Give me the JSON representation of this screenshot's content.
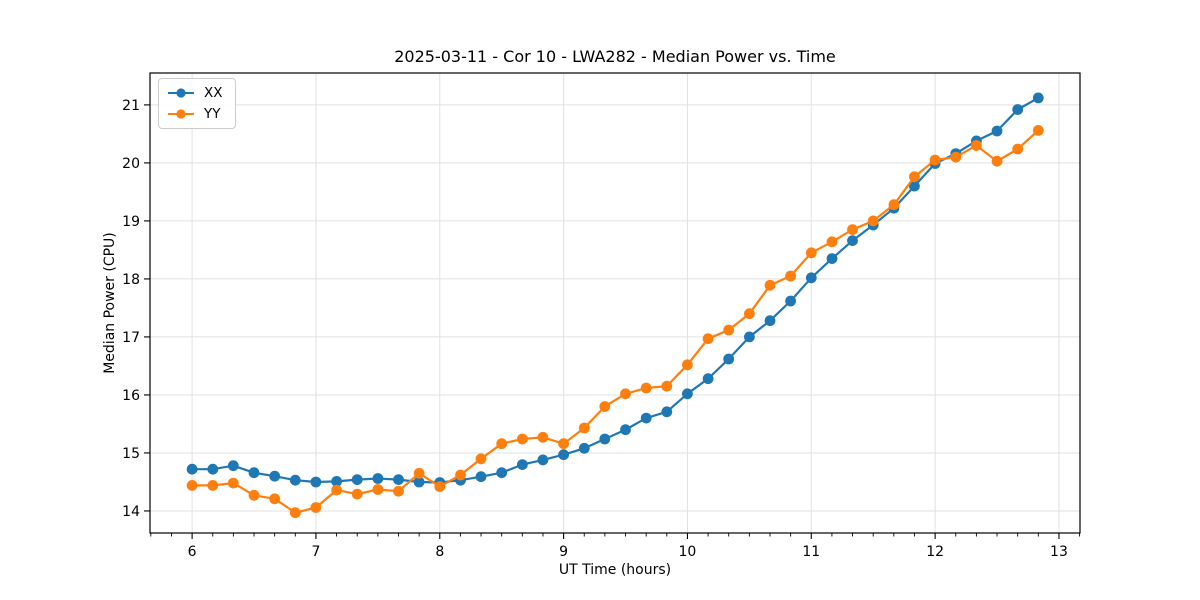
{
  "chart_data": {
    "type": "line",
    "title": "2025-03-11 - Cor 10 - LWA282 - Median Power vs. Time",
    "xlabel": "UT Time (hours)",
    "ylabel": "Median Power (CPU)",
    "xlim": [
      5.66,
      13.17
    ],
    "ylim": [
      13.62,
      21.55
    ],
    "x_ticks": [
      6,
      7,
      8,
      9,
      10,
      11,
      12,
      13
    ],
    "y_ticks": [
      14,
      15,
      16,
      17,
      18,
      19,
      20,
      21
    ],
    "x_minor_ticks_per_hour": 6,
    "grid": true,
    "grid_color": "#e1e1e1",
    "spine_color": "#000000",
    "legend_position": "upper left",
    "x": [
      6.0,
      6.167,
      6.333,
      6.5,
      6.667,
      6.833,
      7.0,
      7.167,
      7.333,
      7.5,
      7.667,
      7.833,
      8.0,
      8.167,
      8.333,
      8.5,
      8.667,
      8.833,
      9.0,
      9.167,
      9.333,
      9.5,
      9.667,
      9.833,
      10.0,
      10.167,
      10.333,
      10.5,
      10.667,
      10.833,
      11.0,
      11.167,
      11.333,
      11.5,
      11.667,
      11.833,
      12.0,
      12.167,
      12.333,
      12.5,
      12.667,
      12.833
    ],
    "series": [
      {
        "name": "XX",
        "color": "#1f77b4",
        "marker": "circle",
        "values": [
          14.72,
          14.72,
          14.78,
          14.66,
          14.6,
          14.53,
          14.5,
          14.51,
          14.54,
          14.56,
          14.54,
          14.5,
          14.49,
          14.53,
          14.59,
          14.66,
          14.8,
          14.88,
          14.97,
          15.08,
          15.24,
          15.4,
          15.6,
          15.71,
          16.02,
          16.28,
          16.62,
          17.0,
          17.28,
          17.62,
          18.02,
          18.35,
          18.66,
          18.93,
          19.22,
          19.6,
          19.99,
          20.16,
          20.38,
          20.55,
          20.92,
          21.12
        ]
      },
      {
        "name": "YY",
        "color": "#ff7f0e",
        "marker": "circle",
        "values": [
          14.44,
          14.44,
          14.48,
          14.27,
          14.21,
          13.97,
          14.06,
          14.36,
          14.29,
          14.37,
          14.34,
          14.65,
          14.42,
          14.62,
          14.9,
          15.16,
          15.24,
          15.27,
          15.16,
          15.43,
          15.8,
          16.02,
          16.12,
          16.15,
          16.52,
          16.97,
          17.12,
          17.4,
          17.89,
          18.05,
          18.45,
          18.64,
          18.85,
          19.0,
          19.28,
          19.76,
          20.05,
          20.1,
          20.3,
          20.03,
          20.24,
          20.56
        ]
      }
    ]
  }
}
